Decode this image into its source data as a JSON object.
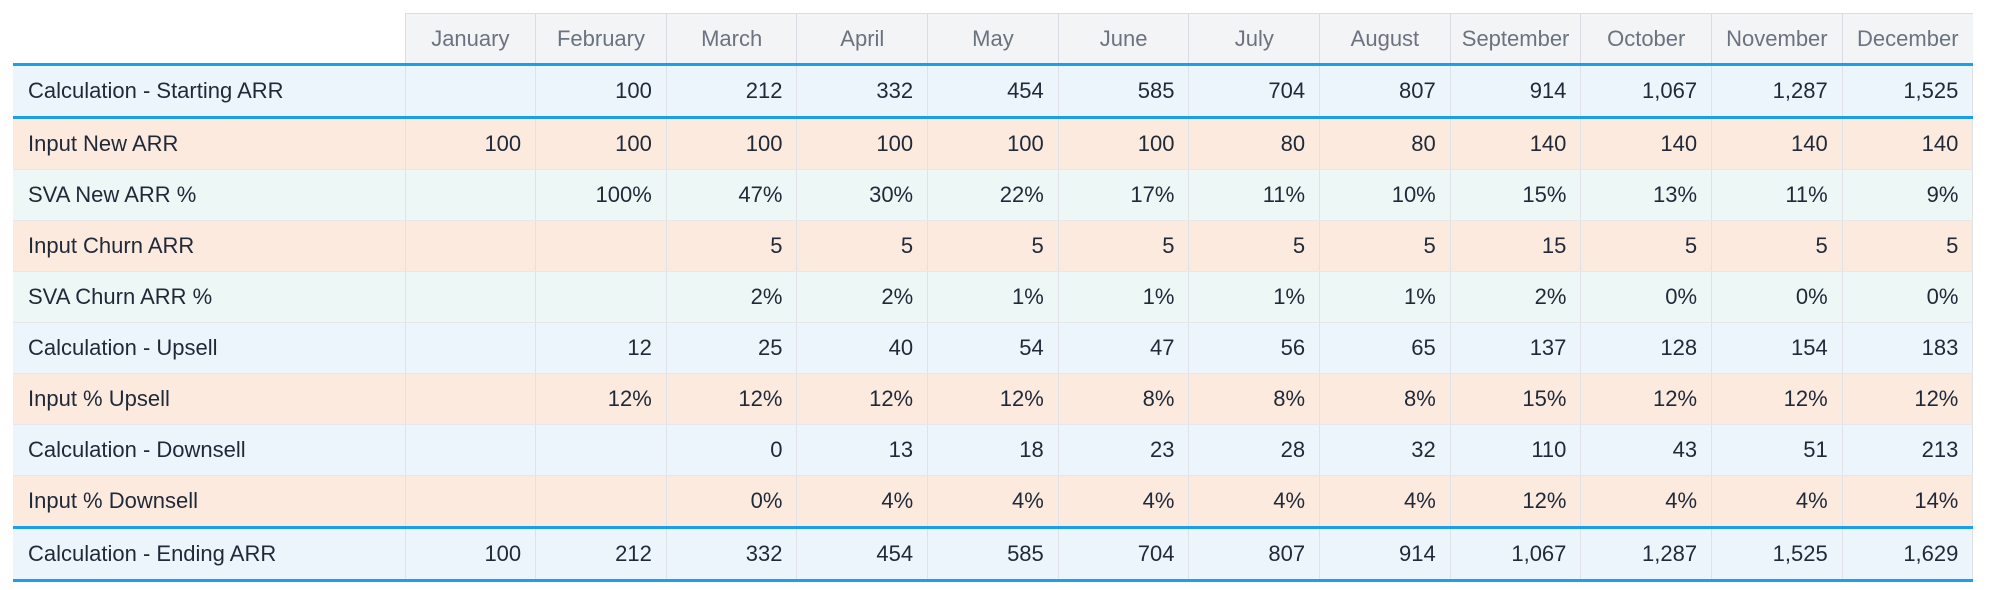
{
  "months": [
    "January",
    "February",
    "March",
    "April",
    "May",
    "June",
    "July",
    "August",
    "September",
    "October",
    "November",
    "December"
  ],
  "rows": [
    {
      "label": "Calculation - Starting ARR",
      "kind": "calc",
      "bordered": true,
      "values": [
        "",
        "100",
        "212",
        "332",
        "454",
        "585",
        "704",
        "807",
        "914",
        "1,067",
        "1,287",
        "1,525"
      ]
    },
    {
      "label": "Input New ARR",
      "kind": "input",
      "bordered": false,
      "values": [
        "100",
        "100",
        "100",
        "100",
        "100",
        "100",
        "80",
        "80",
        "140",
        "140",
        "140",
        "140"
      ]
    },
    {
      "label": "SVA New ARR %",
      "kind": "sva",
      "bordered": false,
      "values": [
        "",
        "100%",
        "47%",
        "30%",
        "22%",
        "17%",
        "11%",
        "10%",
        "15%",
        "13%",
        "11%",
        "9%"
      ]
    },
    {
      "label": "Input Churn ARR",
      "kind": "input",
      "bordered": false,
      "values": [
        "",
        "",
        "5",
        "5",
        "5",
        "5",
        "5",
        "5",
        "15",
        "5",
        "5",
        "5"
      ]
    },
    {
      "label": "SVA Churn ARR %",
      "kind": "sva",
      "bordered": false,
      "values": [
        "",
        "",
        "2%",
        "2%",
        "1%",
        "1%",
        "1%",
        "1%",
        "2%",
        "0%",
        "0%",
        "0%"
      ]
    },
    {
      "label": "Calculation - Upsell",
      "kind": "calc",
      "bordered": false,
      "values": [
        "",
        "12",
        "25",
        "40",
        "54",
        "47",
        "56",
        "65",
        "137",
        "128",
        "154",
        "183"
      ]
    },
    {
      "label": "Input % Upsell",
      "kind": "input",
      "bordered": false,
      "values": [
        "",
        "12%",
        "12%",
        "12%",
        "12%",
        "8%",
        "8%",
        "8%",
        "15%",
        "12%",
        "12%",
        "12%"
      ]
    },
    {
      "label": "Calculation - Downsell",
      "kind": "calc",
      "bordered": false,
      "values": [
        "",
        "",
        "0",
        "13",
        "18",
        "23",
        "28",
        "32",
        "110",
        "43",
        "51",
        "213"
      ]
    },
    {
      "label": "Input % Downsell",
      "kind": "input",
      "bordered": false,
      "values": [
        "",
        "",
        "0%",
        "4%",
        "4%",
        "4%",
        "4%",
        "4%",
        "12%",
        "4%",
        "4%",
        "14%"
      ]
    },
    {
      "label": "Calculation - Ending ARR",
      "kind": "calc",
      "bordered": true,
      "values": [
        "100",
        "212",
        "332",
        "454",
        "585",
        "704",
        "807",
        "914",
        "1,067",
        "1,287",
        "1,525",
        "1,629"
      ]
    }
  ],
  "colors": {
    "accent_border": "#1aa0e8",
    "calc_row_bg": "#edf5fc",
    "input_row_bg": "#fdeadf",
    "sva_row_bg": "#edf7f6",
    "header_bg": "#f3f4f6"
  }
}
